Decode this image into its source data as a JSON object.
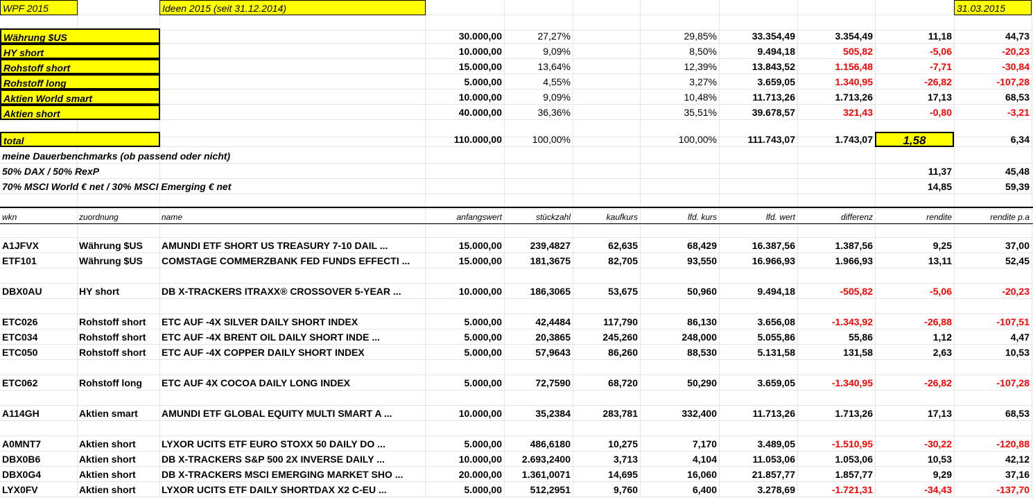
{
  "top": {
    "wpf_label": "WPF 2015",
    "ideen_label": "Ideen 2015 (seit 31.12.2014)",
    "date_label": "31.03.2015"
  },
  "summary": [
    {
      "name": "Währung $US",
      "anfangswert": "30.000,00",
      "pct1": "27,27%",
      "pct2": "29,85%",
      "wert": "33.354,49",
      "diff": "3.354,49",
      "rendite": "11,18",
      "pa": "44,73",
      "neg": false
    },
    {
      "name": "HY short",
      "anfangswert": "10.000,00",
      "pct1": "9,09%",
      "pct2": "8,50%",
      "wert": "9.494,18",
      "diff": "505,82",
      "rendite": "-5,06",
      "pa": "-20,23",
      "neg": true
    },
    {
      "name": "Rohstoff short",
      "anfangswert": "15.000,00",
      "pct1": "13,64%",
      "pct2": "12,39%",
      "wert": "13.843,52",
      "diff": "1.156,48",
      "rendite": "-7,71",
      "pa": "-30,84",
      "neg": true
    },
    {
      "name": "Rohstoff long",
      "anfangswert": "5.000,00",
      "pct1": "4,55%",
      "pct2": "3,27%",
      "wert": "3.659,05",
      "diff": "1.340,95",
      "rendite": "-26,82",
      "pa": "-107,28",
      "neg": true
    },
    {
      "name": "Aktien World smart",
      "anfangswert": "10.000,00",
      "pct1": "9,09%",
      "pct2": "10,48%",
      "wert": "11.713,26",
      "diff": "1.713,26",
      "rendite": "17,13",
      "pa": "68,53",
      "neg": false
    },
    {
      "name": "Aktien short",
      "anfangswert": "40.000,00",
      "pct1": "36,36%",
      "pct2": "35,51%",
      "wert": "39.678,57",
      "diff": "321,43",
      "rendite": "-0,80",
      "pa": "-3,21",
      "neg": true
    }
  ],
  "total": {
    "name": "total",
    "anfangswert": "110.000,00",
    "pct1": "100,00%",
    "pct2": "100,00%",
    "wert": "111.743,07",
    "diff": "1.743,07",
    "rendite": "1,58",
    "pa": "6,34"
  },
  "benchmarks": {
    "heading": "meine Dauerbenchmarks (ob passend oder nicht)",
    "items": [
      {
        "name": "50% DAX / 50% RexP",
        "rendite": "11,37",
        "pa": "45,48"
      },
      {
        "name": "70% MSCI World € net / 30% MSCI Emerging € net",
        "rendite": "14,85",
        "pa": "59,39"
      }
    ]
  },
  "headers": {
    "wkn": "wkn",
    "zuordnung": "zuordnung",
    "name": "name",
    "anfangswert": "anfangswert",
    "stueckzahl": "stückzahl",
    "kaufkurs": "kaufkurs",
    "kurs": "lfd. kurs",
    "wert": "lfd. wert",
    "differenz": "differenz",
    "rendite": "rendite",
    "pa": "rendite p.a"
  },
  "positions": [
    {
      "wkn": "A1JFVX",
      "zuordnung": "Währung $US",
      "name": "AMUNDI ETF SHORT US TREASURY 7-10 DAIL ...",
      "anfangswert": "15.000,00",
      "stueck": "239,4827",
      "kauf": "62,635",
      "kurs": "68,429",
      "wert": "16.387,56",
      "diff": "1.387,56",
      "rendite": "9,25",
      "pa": "37,00",
      "neg": false
    },
    {
      "wkn": "ETF101",
      "zuordnung": "Währung $US",
      "name": "COMSTAGE COMMERZBANK FED FUNDS EFFECTI ...",
      "anfangswert": "15.000,00",
      "stueck": "181,3675",
      "kauf": "82,705",
      "kurs": "93,550",
      "wert": "16.966,93",
      "diff": "1.966,93",
      "rendite": "13,11",
      "pa": "52,45",
      "neg": false
    },
    {
      "wkn": "DBX0AU",
      "zuordnung": "HY short",
      "name": "DB X-TRACKERS ITRAXX® CROSSOVER 5-YEAR ...",
      "anfangswert": "10.000,00",
      "stueck": "186,3065",
      "kauf": "53,675",
      "kurs": "50,960",
      "wert": "9.494,18",
      "diff": "-505,82",
      "rendite": "-5,06",
      "pa": "-20,23",
      "neg": true
    },
    {
      "wkn": "ETC026",
      "zuordnung": "Rohstoff short",
      "name": "ETC AUF -4X SILVER DAILY SHORT INDEX",
      "anfangswert": "5.000,00",
      "stueck": "42,4484",
      "kauf": "117,790",
      "kurs": "86,130",
      "wert": "3.656,08",
      "diff": "-1.343,92",
      "rendite": "-26,88",
      "pa": "-107,51",
      "neg": true
    },
    {
      "wkn": "ETC034",
      "zuordnung": "Rohstoff short",
      "name": "ETC AUF -4X BRENT OIL DAILY SHORT INDE ...",
      "anfangswert": "5.000,00",
      "stueck": "20,3865",
      "kauf": "245,260",
      "kurs": "248,000",
      "wert": "5.055,86",
      "diff": "55,86",
      "rendite": "1,12",
      "pa": "4,47",
      "neg": false
    },
    {
      "wkn": "ETC050",
      "zuordnung": "Rohstoff short",
      "name": "ETC AUF -4X COPPER DAILY SHORT INDEX",
      "anfangswert": "5.000,00",
      "stueck": "57,9643",
      "kauf": "86,260",
      "kurs": "88,530",
      "wert": "5.131,58",
      "diff": "131,58",
      "rendite": "2,63",
      "pa": "10,53",
      "neg": false
    },
    {
      "wkn": "ETC062",
      "zuordnung": "Rohstoff long",
      "name": "ETC AUF 4X COCOA DAILY LONG INDEX",
      "anfangswert": "5.000,00",
      "stueck": "72,7590",
      "kauf": "68,720",
      "kurs": "50,290",
      "wert": "3.659,05",
      "diff": "-1.340,95",
      "rendite": "-26,82",
      "pa": "-107,28",
      "neg": true
    },
    {
      "wkn": "A114GH",
      "zuordnung": "Aktien smart",
      "name": "AMUNDI ETF GLOBAL EQUITY MULTI SMART A ...",
      "anfangswert": "10.000,00",
      "stueck": "35,2384",
      "kauf": "283,781",
      "kurs": "332,400",
      "wert": "11.713,26",
      "diff": "1.713,26",
      "rendite": "17,13",
      "pa": "68,53",
      "neg": false
    },
    {
      "wkn": "A0MNT7",
      "zuordnung": "Aktien short",
      "name": "LYXOR UCITS ETF EURO STOXX 50 DAILY DO ...",
      "anfangswert": "5.000,00",
      "stueck": "486,6180",
      "kauf": "10,275",
      "kurs": "7,170",
      "wert": "3.489,05",
      "diff": "-1.510,95",
      "rendite": "-30,22",
      "pa": "-120,88",
      "neg": true
    },
    {
      "wkn": "DBX0B6",
      "zuordnung": "Aktien short",
      "name": "DB X-TRACKERS S&P 500 2X INVERSE DAILY ...",
      "anfangswert": "10.000,00",
      "stueck": "2.693,2400",
      "kauf": "3,713",
      "kurs": "4,104",
      "wert": "11.053,06",
      "diff": "1.053,06",
      "rendite": "10,53",
      "pa": "42,12",
      "neg": false
    },
    {
      "wkn": "DBX0G4",
      "zuordnung": "Aktien short",
      "name": "DB X-TRACKERS MSCI EMERGING MARKET SHO ...",
      "anfangswert": "20.000,00",
      "stueck": "1.361,0071",
      "kauf": "14,695",
      "kurs": "16,060",
      "wert": "21.857,77",
      "diff": "1.857,77",
      "rendite": "9,29",
      "pa": "37,16",
      "neg": false
    },
    {
      "wkn": "LYX0FV",
      "zuordnung": "Aktien short",
      "name": "LYXOR UCITS ETF DAILY SHORTDAX X2 C-EU ...",
      "anfangswert": "5.000,00",
      "stueck": "512,2951",
      "kauf": "9,760",
      "kurs": "6,400",
      "wert": "3.278,69",
      "diff": "-1.721,31",
      "rendite": "-34,43",
      "pa": "-137,70",
      "neg": true
    }
  ]
}
